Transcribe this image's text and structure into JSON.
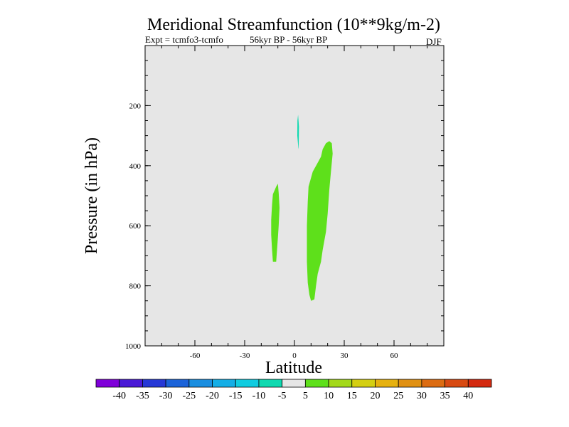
{
  "chart_data": {
    "type": "contour",
    "title": "Meridional Streamfunction (10**9kg/m-2)",
    "subtitle_left": "Expt = tcmfo3-tcmfo",
    "subtitle_center": "56kyr BP - 56kyr BP",
    "season": "DJF",
    "xlabel": "Latitude",
    "ylabel": "Pressure (in hPa)",
    "xlim": [
      -90,
      90
    ],
    "ylim": [
      1000,
      0
    ],
    "x_ticks": [
      -60,
      -30,
      0,
      30,
      60
    ],
    "x_tick_labels": [
      "-60",
      "-30",
      "0",
      "30",
      "60"
    ],
    "y_ticks": [
      200,
      400,
      600,
      800,
      1000
    ],
    "y_tick_labels": [
      "200",
      "400",
      "600",
      "800",
      "1000"
    ],
    "background_color": "#e6e6e6",
    "contour_levels": [
      "-40",
      "-35",
      "-30",
      "-25",
      "-20",
      "-15",
      "-10",
      "-5",
      "5",
      "10",
      "15",
      "20",
      "25",
      "30",
      "35",
      "40"
    ],
    "colorbar_colors": [
      "#7f00d9",
      "#4a1ad6",
      "#2638d6",
      "#1b63d9",
      "#1a8ee0",
      "#14aee6",
      "#10cce0",
      "#0fd9b0",
      "#e6e6e6",
      "#5ee01b",
      "#a3d91a",
      "#d4cf12",
      "#e6b10f",
      "#e09012",
      "#dc6c12",
      "#d84a12",
      "#d42a10"
    ],
    "regions": [
      {
        "name": "positive-cell-north",
        "level": "5 to 10",
        "color": "#5ee01b",
        "outline": [
          [
            10,
            850
          ],
          [
            9,
            830
          ],
          [
            8,
            790
          ],
          [
            7.5,
            720
          ],
          [
            7.5,
            600
          ],
          [
            8,
            520
          ],
          [
            8.5,
            470
          ],
          [
            11,
            420
          ],
          [
            14,
            390
          ],
          [
            16,
            370
          ],
          [
            17,
            345
          ],
          [
            19,
            325
          ],
          [
            21,
            318
          ],
          [
            22.5,
            325
          ],
          [
            23,
            360
          ],
          [
            22,
            420
          ],
          [
            21,
            480
          ],
          [
            20,
            560
          ],
          [
            19,
            620
          ],
          [
            17,
            680
          ],
          [
            16,
            720
          ],
          [
            14,
            760
          ],
          [
            13,
            800
          ],
          [
            12,
            845
          ]
        ]
      },
      {
        "name": "positive-cell-south",
        "level": "5 to 10",
        "color": "#5ee01b",
        "outline": [
          [
            -13,
            720
          ],
          [
            -13.5,
            680
          ],
          [
            -14,
            630
          ],
          [
            -14,
            580
          ],
          [
            -13.5,
            530
          ],
          [
            -13,
            495
          ],
          [
            -11,
            470
          ],
          [
            -10,
            460
          ],
          [
            -9.5,
            490
          ],
          [
            -9,
            540
          ],
          [
            -9.5,
            600
          ],
          [
            -10,
            640
          ],
          [
            -10.5,
            680
          ],
          [
            -11,
            720
          ]
        ]
      },
      {
        "name": "negative-cell-upper",
        "level": "-10 to -5",
        "color": "#0fd9b0",
        "outline": [
          [
            2.3,
            340
          ],
          [
            1.7,
            300
          ],
          [
            1.8,
            250
          ],
          [
            2.2,
            230
          ],
          [
            2.7,
            270
          ],
          [
            2.6,
            310
          ],
          [
            2.5,
            345
          ]
        ]
      }
    ]
  }
}
